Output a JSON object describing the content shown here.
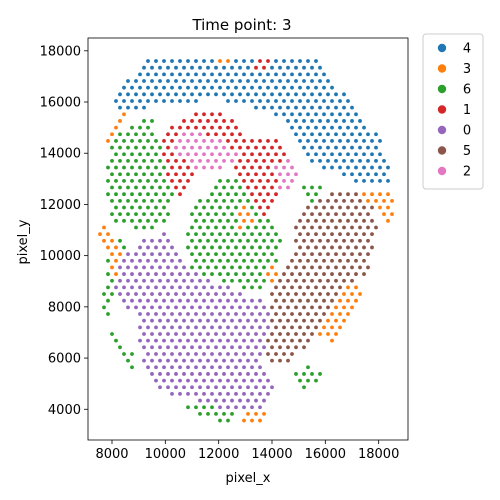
{
  "chart_data": {
    "type": "scatter",
    "title": "Time point: 3",
    "xlabel": "pixel_x",
    "ylabel": "pixel_y",
    "xlim": [
      7100,
      19100
    ],
    "ylim": [
      2800,
      18500
    ],
    "xticks": [
      8000,
      10000,
      12000,
      14000,
      16000,
      18000
    ],
    "yticks": [
      4000,
      6000,
      8000,
      10000,
      12000,
      14000,
      16000,
      18000
    ],
    "xtick_labels": [
      "8000",
      "10000",
      "12000",
      "14000",
      "16000",
      "18000"
    ],
    "ytick_labels": [
      "4000",
      "6000",
      "8000",
      "10000",
      "12000",
      "14000",
      "16000",
      "18000"
    ],
    "legend_position": "outside-upper-right",
    "grid": false,
    "series": [
      {
        "name": "4",
        "color": "#1f77b4",
        "regions": [
          [
            [
              9200,
              17700
            ],
            [
              15700,
              17700
            ],
            [
              17300,
              15500
            ],
            [
              18100,
              14500
            ],
            [
              18500,
              12900
            ],
            [
              17300,
              12800
            ],
            [
              16300,
              13300
            ],
            [
              15500,
              13500
            ],
            [
              14500,
              15200
            ],
            [
              13500,
              15700
            ],
            [
              11800,
              16100
            ],
            [
              9500,
              15800
            ],
            [
              8400,
              15600
            ],
            [
              8100,
              16100
            ]
          ]
        ]
      },
      {
        "name": "3",
        "color": "#ff7f0e",
        "regions": [
          [
            [
              7400,
              10600
            ],
            [
              7900,
              9800
            ],
            [
              8200,
              9000
            ],
            [
              8400,
              10400
            ],
            [
              7700,
              11400
            ]
          ],
          [
            [
              7900,
              14300
            ],
            [
              8800,
              15600
            ],
            [
              8300,
              15600
            ],
            [
              7800,
              14600
            ]
          ],
          [
            [
              17300,
              12700
            ],
            [
              18500,
              12400
            ],
            [
              18700,
              11600
            ],
            [
              18200,
              11100
            ],
            [
              17800,
              12000
            ],
            [
              17500,
              12200
            ]
          ],
          [
            [
              15500,
              6800
            ],
            [
              16300,
              6600
            ],
            [
              16800,
              7600
            ],
            [
              17500,
              8600
            ],
            [
              17000,
              9000
            ],
            [
              16200,
              8100
            ]
          ],
          [
            [
              12600,
              3300
            ],
            [
              13900,
              3600
            ],
            [
              13600,
              4000
            ],
            [
              12800,
              3800
            ]
          ],
          [
            [
              12700,
              12000
            ],
            [
              13200,
              11900
            ],
            [
              13300,
              11200
            ],
            [
              12800,
              11000
            ]
          ],
          [
            [
              13900,
              9700
            ],
            [
              14300,
              9600
            ],
            [
              14200,
              8900
            ],
            [
              13800,
              9100
            ]
          ],
          [
            [
              11700,
              17700
            ],
            [
              12500,
              17700
            ],
            [
              12300,
              17300
            ]
          ]
        ]
      },
      {
        "name": "6",
        "color": "#2ca02c",
        "regions": [
          [
            [
              8000,
              14700
            ],
            [
              9500,
              15500
            ],
            [
              9700,
              14600
            ],
            [
              10000,
              13500
            ],
            [
              10300,
              12300
            ],
            [
              10000,
              11200
            ],
            [
              9100,
              11000
            ],
            [
              8000,
              11400
            ],
            [
              7800,
              12200
            ],
            [
              7800,
              13600
            ]
          ],
          [
            [
              7900,
              10200
            ],
            [
              8400,
              10800
            ],
            [
              8600,
              9700
            ],
            [
              8300,
              8800
            ],
            [
              7800,
              8000
            ],
            [
              8000,
              7000
            ],
            [
              8700,
              6300
            ],
            [
              9200,
              5200
            ],
            [
              10100,
              4400
            ],
            [
              9600,
              4800
            ],
            [
              8500,
              5800
            ],
            [
              8000,
              6900
            ],
            [
              7600,
              8000
            ]
          ],
          [
            [
              11800,
              12900
            ],
            [
              12800,
              13100
            ],
            [
              13600,
              12600
            ],
            [
              13900,
              11400
            ],
            [
              14400,
              10500
            ],
            [
              14100,
              9500
            ],
            [
              13600,
              8600
            ],
            [
              12600,
              8800
            ],
            [
              11400,
              9200
            ],
            [
              10900,
              9600
            ],
            [
              10700,
              10700
            ],
            [
              11000,
              11700
            ]
          ],
          [
            [
              10600,
              4100
            ],
            [
              12200,
              3400
            ],
            [
              12600,
              3800
            ],
            [
              11500,
              4200
            ]
          ],
          [
            [
              14700,
              5400
            ],
            [
              15200,
              4700
            ],
            [
              15900,
              5300
            ],
            [
              15400,
              5800
            ]
          ],
          [
            [
              14900,
              12700
            ],
            [
              15800,
              12900
            ],
            [
              16000,
              12000
            ],
            [
              15400,
              11800
            ]
          ]
        ]
      },
      {
        "name": "1",
        "color": "#d62728",
        "regions": [
          [
            [
              9800,
              14700
            ],
            [
              10300,
              15200
            ],
            [
              11700,
              15800
            ],
            [
              12600,
              15200
            ],
            [
              13100,
              14700
            ],
            [
              14100,
              14600
            ],
            [
              14600,
              13900
            ],
            [
              14400,
              12800
            ],
            [
              14000,
              11900
            ],
            [
              13600,
              11500
            ],
            [
              13200,
              12000
            ],
            [
              12700,
              13300
            ],
            [
              11900,
              13900
            ],
            [
              11400,
              13700
            ],
            [
              11000,
              12800
            ],
            [
              10500,
              12200
            ],
            [
              10000,
              13300
            ]
          ],
          [
            [
              13400,
              17700
            ],
            [
              14000,
              17700
            ],
            [
              13700,
              17000
            ],
            [
              13300,
              17300
            ]
          ]
        ]
      },
      {
        "name": "0",
        "color": "#9467bd",
        "regions": [
          [
            [
              7900,
              9600
            ],
            [
              9100,
              10600
            ],
            [
              10000,
              10900
            ],
            [
              10400,
              10100
            ],
            [
              10800,
              9600
            ],
            [
              11400,
              9200
            ],
            [
              12600,
              8700
            ],
            [
              13600,
              8300
            ],
            [
              14000,
              7600
            ],
            [
              13900,
              6500
            ],
            [
              13600,
              5600
            ],
            [
              14100,
              4900
            ],
            [
              13800,
              4100
            ],
            [
              13100,
              3800
            ],
            [
              12400,
              3900
            ],
            [
              11200,
              4300
            ],
            [
              10000,
              4600
            ],
            [
              9300,
              5400
            ],
            [
              9000,
              6700
            ],
            [
              8900,
              7600
            ],
            [
              8200,
              8300
            ]
          ]
        ]
      },
      {
        "name": "5",
        "color": "#8c564b",
        "regions": [
          [
            [
              14700,
              11300
            ],
            [
              15300,
              11900
            ],
            [
              16300,
              12500
            ],
            [
              17100,
              12600
            ],
            [
              17800,
              12100
            ],
            [
              18000,
              11100
            ],
            [
              17700,
              9600
            ],
            [
              17200,
              8900
            ],
            [
              16300,
              8200
            ],
            [
              15800,
              7200
            ],
            [
              15400,
              6500
            ],
            [
              14800,
              6000
            ],
            [
              14300,
              5600
            ],
            [
              13700,
              6100
            ],
            [
              13900,
              7200
            ],
            [
              14000,
              8600
            ],
            [
              14400,
              9500
            ],
            [
              14800,
              10400
            ]
          ]
        ]
      },
      {
        "name": "2",
        "color": "#e377c2",
        "regions": [
          [
            [
              10200,
              14600
            ],
            [
              11100,
              15000
            ],
            [
              12200,
              14400
            ],
            [
              12700,
              14000
            ],
            [
              12400,
              13500
            ],
            [
              11900,
              13300
            ],
            [
              11200,
              13300
            ],
            [
              10600,
              13800
            ]
          ],
          [
            [
              14100,
              13600
            ],
            [
              14800,
              13900
            ],
            [
              15000,
              12900
            ],
            [
              14600,
              12300
            ],
            [
              14200,
              12600
            ]
          ]
        ]
      }
    ]
  }
}
